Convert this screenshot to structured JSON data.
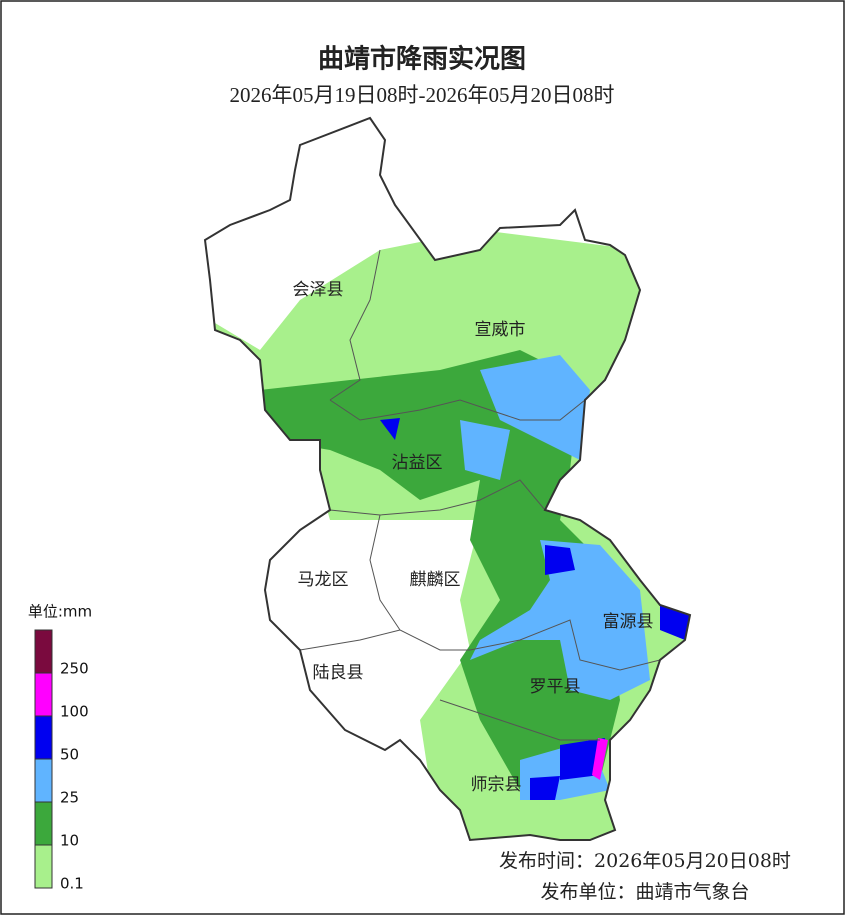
{
  "header": {
    "title": "曲靖市降雨实况图",
    "subtitle": "2026年05月19日08时-2026年05月20日08时"
  },
  "regions": [
    {
      "label": "会泽县"
    },
    {
      "label": "宣威市"
    },
    {
      "label": "沾益区"
    },
    {
      "label": "马龙区"
    },
    {
      "label": "麒麟区"
    },
    {
      "label": "富源县"
    },
    {
      "label": "陆良县"
    },
    {
      "label": "罗平县"
    },
    {
      "label": "师宗县"
    }
  ],
  "legend": {
    "title": "单位:mm",
    "levels": [
      0.1,
      10,
      25,
      50,
      100,
      250
    ],
    "colors": [
      "#a8f08c",
      "#3ca83c",
      "#60b4ff",
      "#0000f0",
      "#ff00ff",
      "#7a0a3e"
    ]
  },
  "footer": {
    "time": "发布时间：2026年05月20日08时",
    "unit": "发布单位：曲靖市气象台"
  }
}
